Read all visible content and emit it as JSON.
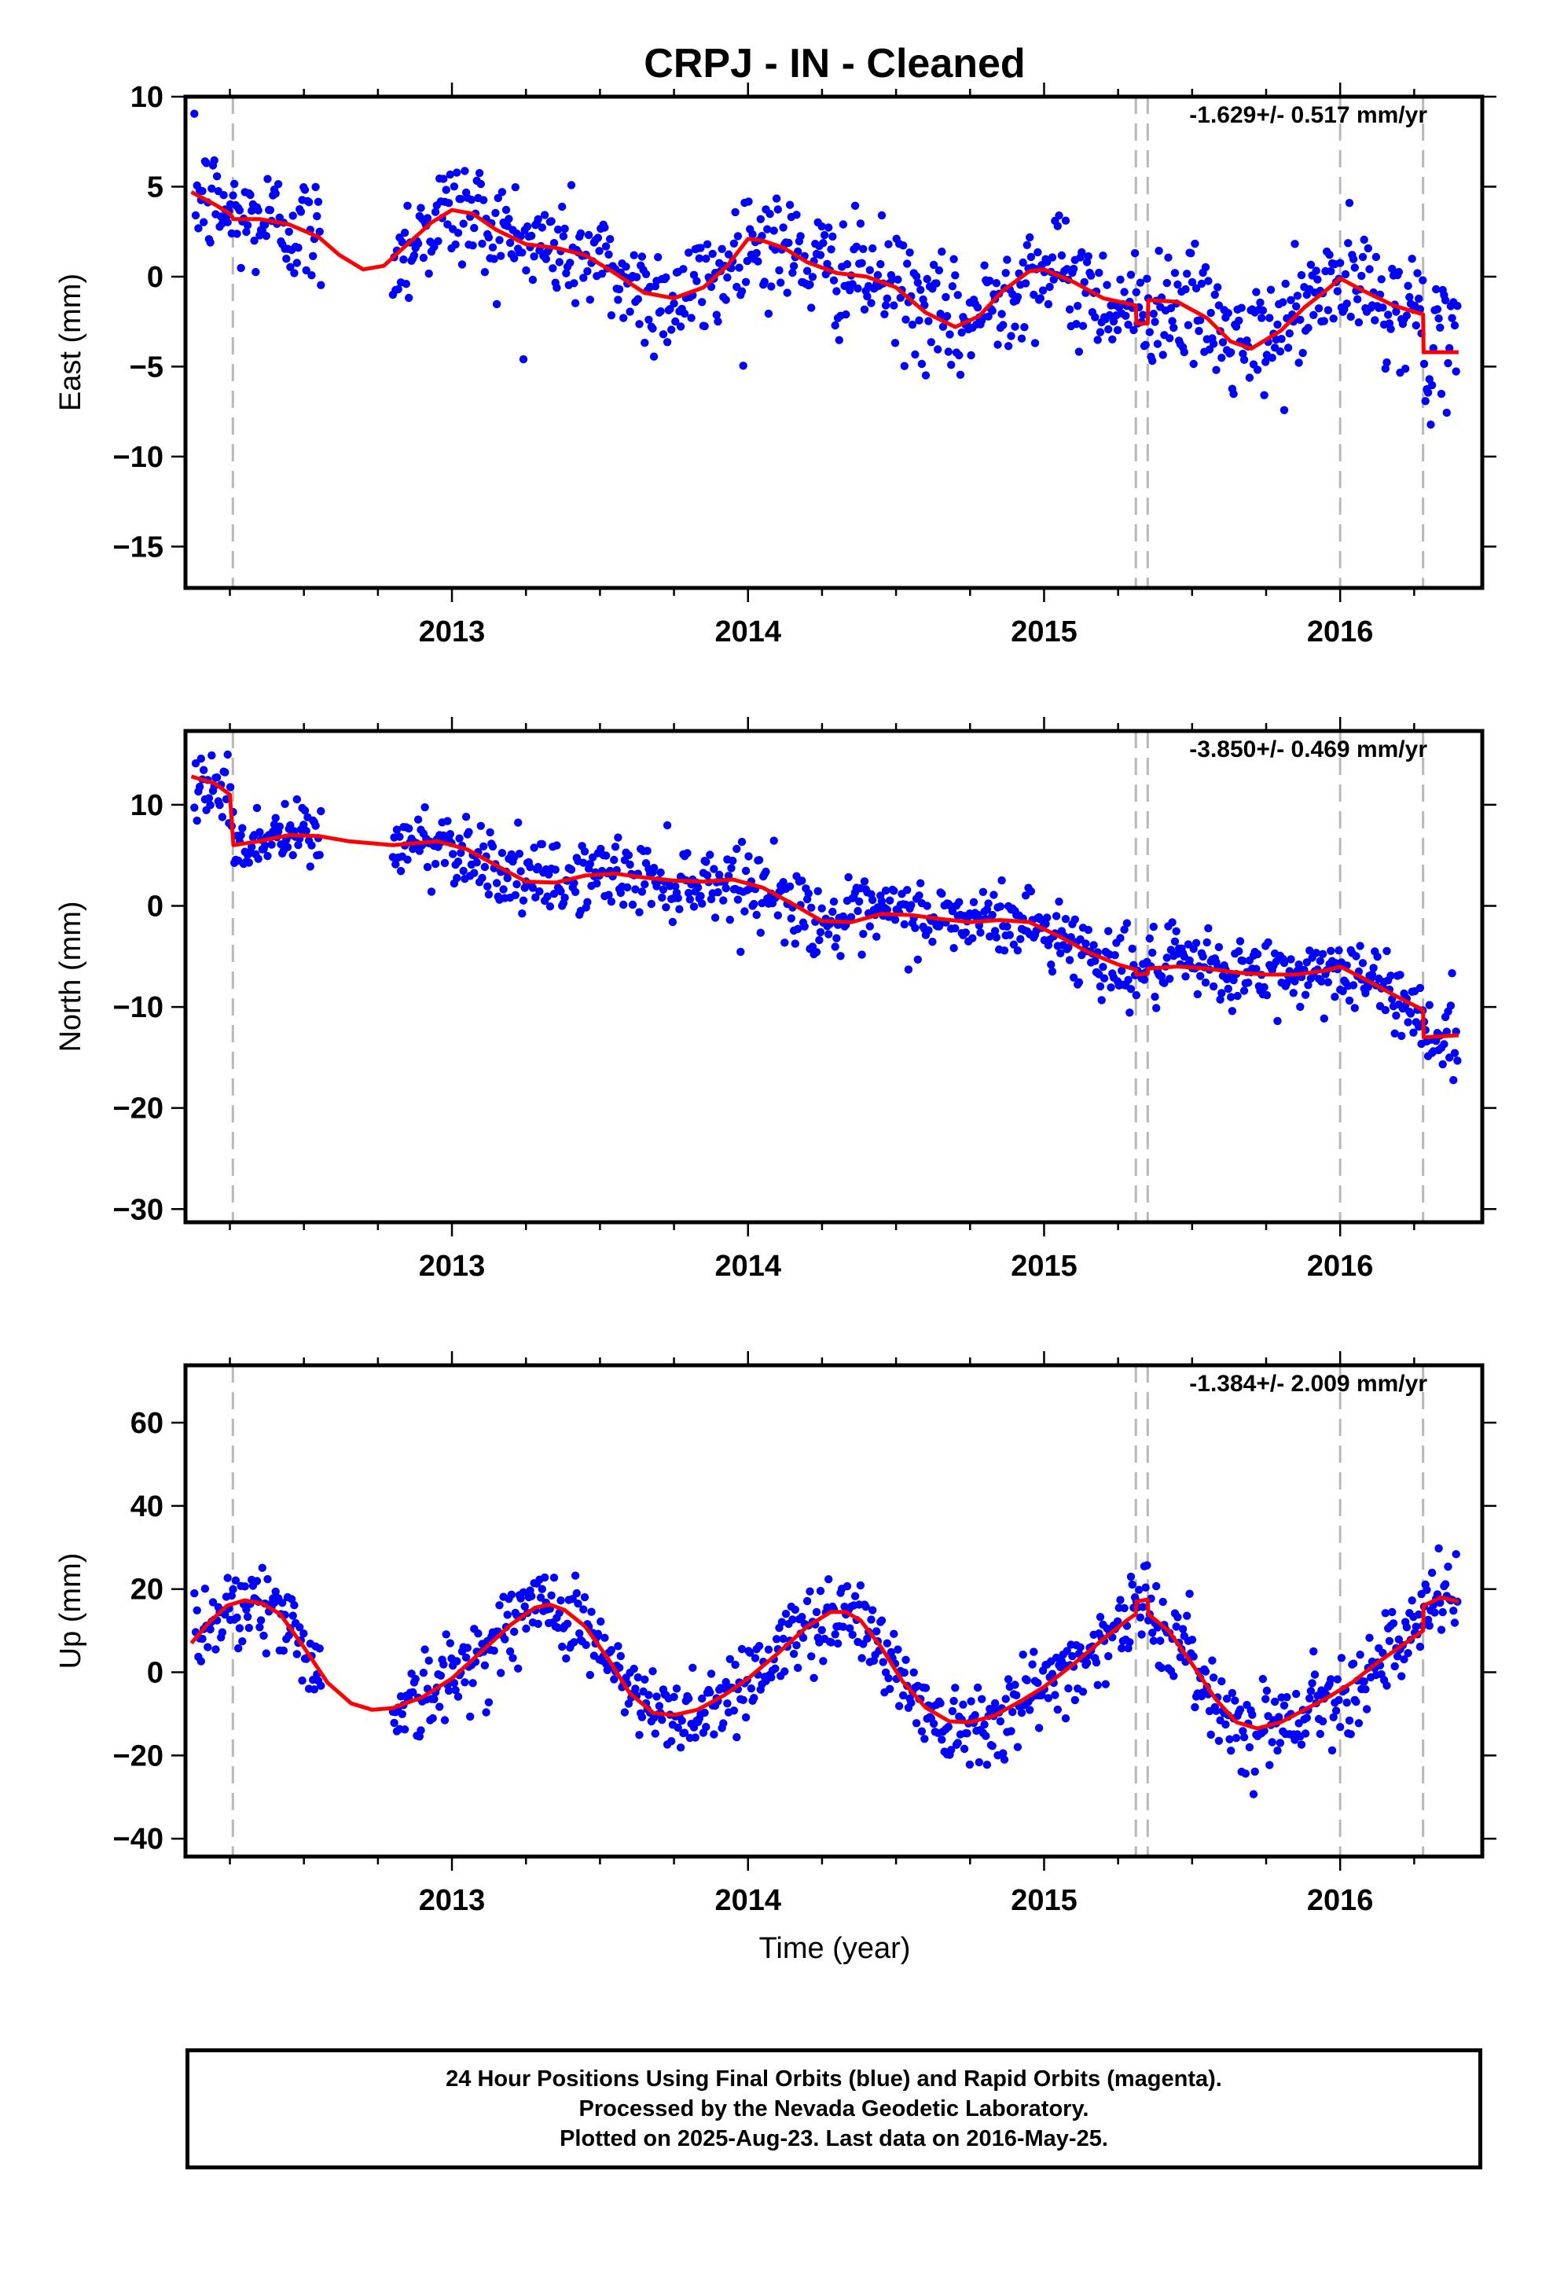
{
  "title": "CRPJ  - IN - Cleaned",
  "x_label": "Time (year)",
  "footer": {
    "line1": "24 Hour Positions Using Final Orbits (blue) and Rapid Orbits (magenta).",
    "line2": "Processed by the Nevada Geodetic Laboratory.",
    "line3": "Plotted on 2025-Aug-23. Last data on 2016-May-25."
  },
  "colors": {
    "data": "#0000ff",
    "model": "#ff0000",
    "offset_lines": "#b8b8b8"
  },
  "chart_data": [
    {
      "type": "scatter",
      "ylabel": "East (mm)",
      "rate": "-1.629+/- 0.517 mm/yr",
      "xlim": [
        2012.1,
        2016.48
      ],
      "ylim": [
        -17.3,
        10
      ],
      "yticks": [
        10,
        5,
        0,
        -5,
        -10,
        -15
      ],
      "xticks": [
        2013,
        2014,
        2015,
        2016
      ],
      "offsets": [
        2012.26,
        2015.31,
        2015.35,
        2016.0,
        2016.28
      ],
      "model": [
        [
          2012.12,
          4.7
        ],
        [
          2012.2,
          4.0
        ],
        [
          2012.25,
          3.5
        ],
        [
          2012.262,
          3.2
        ],
        [
          2012.35,
          3.2
        ],
        [
          2012.45,
          2.9
        ],
        [
          2012.55,
          2.2
        ],
        [
          2012.62,
          1.2
        ],
        [
          2012.7,
          0.4
        ],
        [
          2012.77,
          0.6
        ],
        [
          2012.85,
          1.8
        ],
        [
          2012.93,
          3.0
        ],
        [
          2013.0,
          3.7
        ],
        [
          2013.07,
          3.5
        ],
        [
          2013.15,
          2.6
        ],
        [
          2013.25,
          1.8
        ],
        [
          2013.35,
          1.6
        ],
        [
          2013.45,
          1.2
        ],
        [
          2013.55,
          0.2
        ],
        [
          2013.65,
          -0.9
        ],
        [
          2013.75,
          -1.2
        ],
        [
          2013.85,
          -0.6
        ],
        [
          2013.93,
          0.6
        ],
        [
          2014.0,
          2.1
        ],
        [
          2014.05,
          2.0
        ],
        [
          2014.12,
          1.6
        ],
        [
          2014.2,
          0.8
        ],
        [
          2014.3,
          0.2
        ],
        [
          2014.4,
          0.0
        ],
        [
          2014.5,
          -0.6
        ],
        [
          2014.6,
          -2.0
        ],
        [
          2014.7,
          -2.8
        ],
        [
          2014.78,
          -2.2
        ],
        [
          2014.86,
          -0.8
        ],
        [
          2014.95,
          0.3
        ],
        [
          2015.0,
          0.4
        ],
        [
          2015.1,
          -0.3
        ],
        [
          2015.2,
          -1.2
        ],
        [
          2015.31,
          -1.6
        ],
        [
          2015.312,
          -2.6
        ],
        [
          2015.35,
          -2.6
        ],
        [
          2015.352,
          -1.3
        ],
        [
          2015.45,
          -1.4
        ],
        [
          2015.55,
          -2.3
        ],
        [
          2015.63,
          -3.6
        ],
        [
          2015.7,
          -4.0
        ],
        [
          2015.8,
          -3.0
        ],
        [
          2015.88,
          -1.7
        ],
        [
          2015.95,
          -0.8
        ],
        [
          2016.0,
          -0.1
        ],
        [
          2016.08,
          -0.8
        ],
        [
          2016.18,
          -1.6
        ],
        [
          2016.28,
          -2.1
        ],
        [
          2016.282,
          -4.2
        ],
        [
          2016.4,
          -4.2
        ]
      ]
    },
    {
      "type": "scatter",
      "ylabel": "North (mm)",
      "rate": "-3.850+/- 0.469 mm/yr",
      "xlim": [
        2012.1,
        2016.48
      ],
      "ylim": [
        -31.3,
        17.3
      ],
      "yticks": [
        10,
        0,
        -10,
        -20,
        -30
      ],
      "xticks": [
        2013,
        2014,
        2015,
        2016
      ],
      "offsets": [
        2012.26,
        2015.31,
        2015.35,
        2016.0,
        2016.28
      ],
      "model": [
        [
          2012.12,
          12.8
        ],
        [
          2012.2,
          12.1
        ],
        [
          2012.25,
          11.0
        ],
        [
          2012.262,
          6.0
        ],
        [
          2012.35,
          6.4
        ],
        [
          2012.45,
          7.0
        ],
        [
          2012.55,
          6.9
        ],
        [
          2012.65,
          6.4
        ],
        [
          2012.8,
          6.0
        ],
        [
          2012.95,
          6.4
        ],
        [
          2013.05,
          5.6
        ],
        [
          2013.15,
          4.0
        ],
        [
          2013.25,
          2.4
        ],
        [
          2013.35,
          2.3
        ],
        [
          2013.45,
          3.0
        ],
        [
          2013.55,
          3.2
        ],
        [
          2013.65,
          2.8
        ],
        [
          2013.75,
          2.5
        ],
        [
          2013.85,
          2.4
        ],
        [
          2013.95,
          2.6
        ],
        [
          2014.05,
          1.8
        ],
        [
          2014.15,
          0.2
        ],
        [
          2014.25,
          -1.5
        ],
        [
          2014.35,
          -1.6
        ],
        [
          2014.45,
          -0.8
        ],
        [
          2014.55,
          -0.9
        ],
        [
          2014.65,
          -1.3
        ],
        [
          2014.75,
          -1.6
        ],
        [
          2014.85,
          -1.4
        ],
        [
          2014.95,
          -1.6
        ],
        [
          2015.05,
          -3.0
        ],
        [
          2015.15,
          -4.6
        ],
        [
          2015.25,
          -5.8
        ],
        [
          2015.31,
          -6.3
        ],
        [
          2015.312,
          -6.8
        ],
        [
          2015.35,
          -6.7
        ],
        [
          2015.352,
          -6.2
        ],
        [
          2015.45,
          -6.0
        ],
        [
          2015.55,
          -6.2
        ],
        [
          2015.65,
          -6.6
        ],
        [
          2015.75,
          -6.8
        ],
        [
          2015.85,
          -6.8
        ],
        [
          2015.95,
          -6.4
        ],
        [
          2016.0,
          -6.0
        ],
        [
          2016.08,
          -7.2
        ],
        [
          2016.18,
          -8.8
        ],
        [
          2016.28,
          -10.3
        ],
        [
          2016.282,
          -13.0
        ],
        [
          2016.4,
          -12.8
        ]
      ]
    },
    {
      "type": "scatter",
      "ylabel": "Up (mm)",
      "rate": "-1.384+/- 2.009 mm/yr",
      "xlim": [
        2012.1,
        2016.48
      ],
      "ylim": [
        -44.3,
        73.8
      ],
      "yticks": [
        60,
        40,
        20,
        0,
        -20,
        -40
      ],
      "xticks": [
        2013,
        2014,
        2015,
        2016
      ],
      "offsets": [
        2012.26,
        2015.31,
        2015.35,
        2016.0,
        2016.28
      ],
      "model": [
        [
          2012.12,
          7.0
        ],
        [
          2012.18,
          12.0
        ],
        [
          2012.24,
          16.0
        ],
        [
          2012.3,
          17.3
        ],
        [
          2012.36,
          16.5
        ],
        [
          2012.42,
          14.0
        ],
        [
          2012.5,
          6.0
        ],
        [
          2012.58,
          -2.5
        ],
        [
          2012.66,
          -7.5
        ],
        [
          2012.73,
          -9.0
        ],
        [
          2012.8,
          -8.6
        ],
        [
          2012.9,
          -6.0
        ],
        [
          2013.0,
          -1.5
        ],
        [
          2013.1,
          5.0
        ],
        [
          2013.2,
          11.5
        ],
        [
          2013.28,
          15.5
        ],
        [
          2013.33,
          16.3
        ],
        [
          2013.38,
          15.0
        ],
        [
          2013.45,
          11.0
        ],
        [
          2013.53,
          3.0
        ],
        [
          2013.6,
          -5.0
        ],
        [
          2013.68,
          -9.8
        ],
        [
          2013.75,
          -10.3
        ],
        [
          2013.83,
          -9.0
        ],
        [
          2013.92,
          -5.5
        ],
        [
          2014.0,
          -1.5
        ],
        [
          2014.1,
          4.5
        ],
        [
          2014.2,
          11.0
        ],
        [
          2014.28,
          14.5
        ],
        [
          2014.33,
          14.5
        ],
        [
          2014.38,
          12.5
        ],
        [
          2014.45,
          6.0
        ],
        [
          2014.52,
          -2.0
        ],
        [
          2014.6,
          -8.5
        ],
        [
          2014.68,
          -11.8
        ],
        [
          2014.75,
          -12.0
        ],
        [
          2014.83,
          -10.5
        ],
        [
          2014.92,
          -7.0
        ],
        [
          2015.0,
          -3.5
        ],
        [
          2015.1,
          2.0
        ],
        [
          2015.2,
          8.0
        ],
        [
          2015.28,
          12.5
        ],
        [
          2015.31,
          14.0
        ],
        [
          2015.312,
          17.0
        ],
        [
          2015.35,
          17.5
        ],
        [
          2015.352,
          14.0
        ],
        [
          2015.42,
          10.0
        ],
        [
          2015.5,
          2.0
        ],
        [
          2015.58,
          -6.5
        ],
        [
          2015.65,
          -12.0
        ],
        [
          2015.72,
          -13.5
        ],
        [
          2015.8,
          -12.0
        ],
        [
          2015.88,
          -9.0
        ],
        [
          2015.96,
          -6.0
        ],
        [
          2016.04,
          -2.5
        ],
        [
          2016.12,
          2.0
        ],
        [
          2016.2,
          6.0
        ],
        [
          2016.28,
          10.0
        ],
        [
          2016.282,
          16.0
        ],
        [
          2016.34,
          18.0
        ],
        [
          2016.4,
          17.0
        ]
      ]
    }
  ]
}
